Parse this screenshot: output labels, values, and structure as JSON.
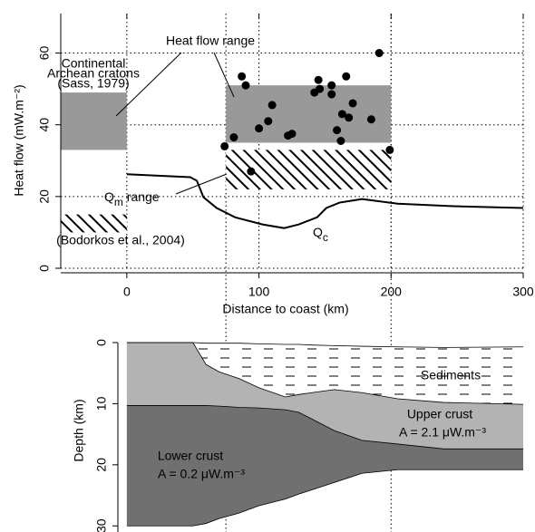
{
  "chart_data": [
    {
      "type": "scatter",
      "xlabel": "Distance to coast (km)",
      "ylabel": "Heat flow (mW.m⁻²)",
      "xlim": [
        -50,
        300
      ],
      "ylim": [
        0,
        71
      ],
      "xticks": [
        0,
        100,
        200,
        300
      ],
      "yticks": [
        0,
        20,
        40,
        60
      ],
      "grid": true,
      "guide_x": [
        75,
        200
      ],
      "x": [
        74,
        81,
        87,
        90,
        94,
        100,
        107,
        110,
        122,
        125,
        142,
        145,
        146,
        155,
        155,
        159,
        162,
        163,
        166,
        168,
        171,
        185,
        191,
        199
      ],
      "values": [
        34,
        36.5,
        53.5,
        51,
        27,
        39,
        41,
        45.5,
        37,
        37.5,
        49,
        52.5,
        50,
        51,
        48.5,
        38.5,
        35.5,
        43,
        53.5,
        42,
        46,
        41.5,
        60,
        33
      ],
      "color": "#000000",
      "boxes": [
        {
          "x": [
            75,
            200
          ],
          "y": [
            35,
            51
          ],
          "fill": "#999999"
        },
        {
          "x": [
            -50,
            0
          ],
          "y": [
            33,
            49
          ],
          "fill": "#999999"
        },
        {
          "x": [
            75,
            200
          ],
          "y": [
            22,
            33
          ],
          "fill": "hatch"
        },
        {
          "x": [
            -50,
            0
          ],
          "y": [
            10,
            15
          ],
          "fill": "hatch"
        }
      ],
      "line_x": [
        0,
        48,
        53,
        58,
        68,
        82,
        103,
        119,
        130,
        144,
        151,
        161,
        178,
        205,
        247,
        300
      ],
      "line_y": [
        26.2,
        25.4,
        24.4,
        19.8,
        16.8,
        14.2,
        12.2,
        11.2,
        12.2,
        14.2,
        16.8,
        18.3,
        19.3,
        18,
        17.3,
        16.8
      ],
      "annotations": [
        "Heat flow range",
        "Continental",
        "Archean cratons",
        "(Sass, 1979)",
        "(Bodorkos et al., 2004)"
      ],
      "qm_label": {
        "main": "Q",
        "sub": "m",
        "rest": " range"
      },
      "qc_label": {
        "main": "Q",
        "sub": "c"
      }
    },
    {
      "type": "layers",
      "ylabel": "Depth (km)",
      "xlim": [
        -50,
        300
      ],
      "ylim": [
        0,
        31
      ],
      "yticks": [
        0,
        10,
        20,
        30
      ],
      "x": [
        0,
        50,
        60,
        70,
        85,
        100,
        120,
        130,
        140,
        157,
        178,
        205,
        240,
        300
      ],
      "boundaries": [
        [
          0,
          0,
          0.1,
          0.1,
          0.1,
          0.2,
          0.3,
          0.3,
          0.4,
          0.5,
          0.6,
          0.7,
          0.8,
          0.7
        ],
        [
          0,
          0,
          3.6,
          4.8,
          5.9,
          7.4,
          8.9,
          8.5,
          8.2,
          7.7,
          8.2,
          9.2,
          9.8,
          10.1
        ],
        [
          10.3,
          10.3,
          10.3,
          10.4,
          10.6,
          10.7,
          11.0,
          11.4,
          12.5,
          14.4,
          16.0,
          16.6,
          17.4,
          17.4
        ],
        [
          30,
          30,
          29.6,
          28.8,
          27.9,
          26.7,
          25.6,
          24.8,
          24.1,
          22.9,
          21.4,
          20.8,
          20.8,
          20.8
        ]
      ],
      "fills": [
        "dash",
        "#b3b3b3",
        "#707070"
      ],
      "labels": [
        "Sediments",
        "Upper crust",
        "A = 2.1 μW.m⁻³",
        "Lower crust",
        "A = 0.2 μW.m⁻³"
      ]
    }
  ]
}
